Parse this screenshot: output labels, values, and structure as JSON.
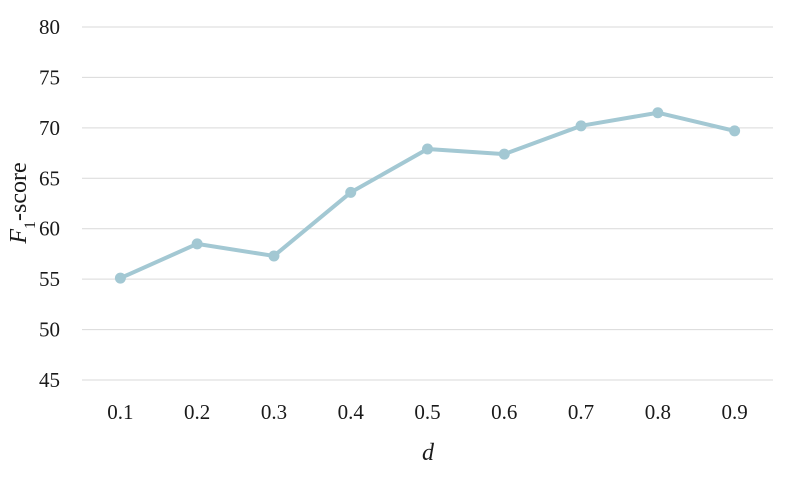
{
  "chart_data": {
    "type": "line",
    "title": "",
    "xlabel": "d",
    "ylabel_main": "F",
    "ylabel_sub": "1",
    "ylabel_rest": "-score",
    "categories": [
      "0.1",
      "0.2",
      "0.3",
      "0.4",
      "0.5",
      "0.6",
      "0.7",
      "0.8",
      "0.9"
    ],
    "yticks": [
      "45",
      "50",
      "55",
      "60",
      "65",
      "70",
      "75",
      "80"
    ],
    "ylim": [
      45,
      80
    ],
    "grid": true,
    "legend": "none",
    "series": [
      {
        "color": "#a3c8d3",
        "values": [
          55.1,
          58.5,
          57.3,
          63.6,
          67.9,
          67.4,
          70.2,
          71.5,
          69.7
        ]
      }
    ]
  }
}
